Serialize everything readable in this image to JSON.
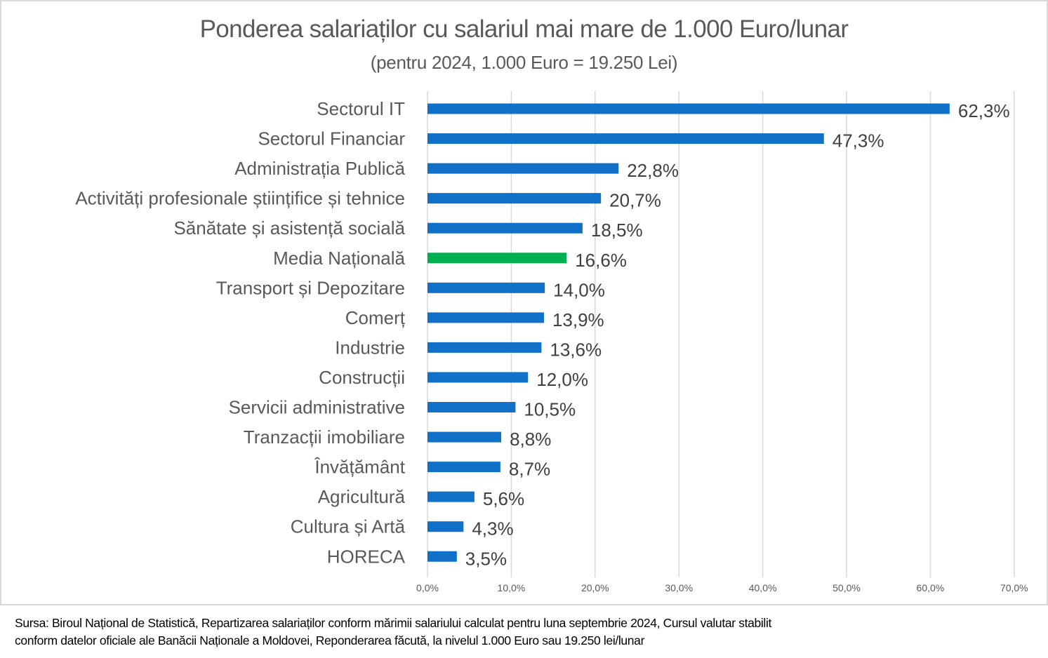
{
  "chart_data": {
    "type": "bar",
    "orientation": "horizontal",
    "title": "Ponderea salariaților cu salariul mai mare de 1.000 Euro/lunar",
    "subtitle": "(pentru 2024, 1.000 Euro = 19.250 Lei)",
    "xlabel": "",
    "ylabel": "",
    "xlim": [
      0,
      70
    ],
    "x_ticks": [
      0,
      10,
      20,
      30,
      40,
      50,
      60,
      70
    ],
    "x_tick_labels": [
      "0,0%",
      "10,0%",
      "20,0%",
      "30,0%",
      "40,0%",
      "50,0%",
      "60,0%",
      "70,0%"
    ],
    "grid": true,
    "legend": "none",
    "categories": [
      "Sectorul IT",
      "Sectorul Financiar",
      "Administrația Publică",
      "Activități profesionale științifice și tehnice",
      "Sănătate și asistență socială",
      "Media Națională",
      "Transport și Depozitare",
      "Comerț",
      "Industrie",
      "Construcții",
      "Servicii administrative",
      "Tranzacții imobiliare",
      "Învățământ",
      "Agricultură",
      "Cultura și Artă",
      "HORECA"
    ],
    "values": [
      62.3,
      47.3,
      22.8,
      20.7,
      18.5,
      16.6,
      14.0,
      13.9,
      13.6,
      12.0,
      10.5,
      8.8,
      8.7,
      5.6,
      4.3,
      3.5
    ],
    "data_labels": [
      "62,3%",
      "47,3%",
      "22,8%",
      "20,7%",
      "18,5%",
      "16,6%",
      "14,0%",
      "13,9%",
      "13,6%",
      "12,0%",
      "10,5%",
      "8,8%",
      "8,7%",
      "5,6%",
      "4,3%",
      "3,5%"
    ],
    "highlight_category": "Media Națională",
    "colors": {
      "default": "#1170C8",
      "highlight": "#00B050",
      "gridline": "#D9D9D9"
    }
  },
  "footer": {
    "source_line1": "Sursa: Biroul Național de Statistică, Repartizarea salariaților conform mărimii salariului calculat pentru luna septembrie 2024, Cursul valutar stabilit",
    "source_line2": "conform datelor oficiale ale Banăcii Naționale a Moldovei, Reponderarea făcută, la nivelul 1.000 Euro sau 19.250 lei/lunar"
  }
}
